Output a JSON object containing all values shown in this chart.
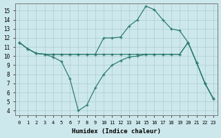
{
  "background_color": "#cde8ec",
  "grid_color": "#aaccd4",
  "line_color": "#2e7d6e",
  "xlabel": "Humidex (Indice chaleur)",
  "xlim": [
    -0.5,
    23.5
  ],
  "ylim": [
    3.5,
    15.8
  ],
  "xticks": [
    0,
    1,
    2,
    3,
    4,
    5,
    6,
    7,
    8,
    9,
    10,
    11,
    12,
    13,
    14,
    15,
    16,
    17,
    18,
    19,
    20,
    21,
    22,
    23
  ],
  "yticks": [
    4,
    5,
    6,
    7,
    8,
    9,
    10,
    11,
    12,
    13,
    14,
    15
  ],
  "line1_x": [
    0,
    1,
    2,
    3,
    4,
    5,
    6,
    7,
    8,
    9,
    10,
    11,
    12,
    13,
    14,
    15,
    16,
    17,
    18,
    19,
    20,
    21,
    22,
    23
  ],
  "line1_y": [
    11.5,
    10.8,
    10.3,
    10.2,
    10.2,
    10.2,
    10.2,
    10.2,
    10.2,
    10.2,
    12.0,
    12.0,
    12.1,
    13.3,
    14.0,
    15.5,
    15.1,
    14.0,
    13.0,
    12.8,
    11.5,
    9.3,
    7.0,
    5.3
  ],
  "line2_x": [
    0,
    1,
    2,
    3,
    4,
    5,
    6,
    7,
    8,
    9,
    10,
    11,
    12,
    13,
    14,
    15,
    16,
    17,
    18,
    19,
    20,
    21,
    22,
    23
  ],
  "line2_y": [
    11.5,
    10.8,
    10.3,
    10.2,
    10.2,
    10.2,
    10.2,
    10.2,
    10.2,
    10.2,
    10.2,
    10.2,
    10.2,
    10.2,
    10.2,
    10.2,
    10.2,
    10.2,
    10.2,
    10.2,
    11.5,
    9.3,
    7.0,
    5.3
  ],
  "line3_x": [
    0,
    1,
    2,
    3,
    4,
    5,
    6,
    7,
    8,
    9,
    10,
    11,
    12,
    13,
    14,
    15,
    16,
    17,
    18,
    19,
    20,
    21,
    22,
    23
  ],
  "line3_y": [
    11.5,
    10.8,
    10.3,
    10.2,
    9.9,
    9.4,
    7.5,
    4.0,
    4.6,
    6.5,
    8.0,
    9.0,
    9.5,
    9.9,
    10.0,
    10.2,
    10.2,
    10.2,
    10.2,
    10.2,
    11.5,
    9.3,
    7.0,
    5.3
  ]
}
